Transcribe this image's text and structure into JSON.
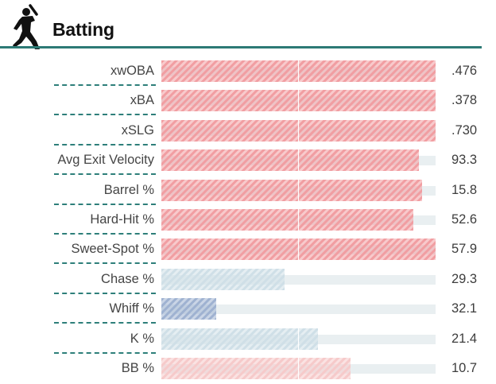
{
  "header": {
    "title": "Batting",
    "icon": "batter-icon"
  },
  "colors": {
    "accent": "#2c7a75",
    "bar_strong_red": "#f19ea2",
    "bar_light_red": "#f6caca",
    "bar_light_blue": "#cfdfe7",
    "bar_blue": "#9fb2d1"
  },
  "stats": [
    {
      "label": "xwOBA",
      "value": ".476",
      "percentile": 100,
      "tone": "strong_red"
    },
    {
      "label": "xBA",
      "value": ".378",
      "percentile": 100,
      "tone": "strong_red"
    },
    {
      "label": "xSLG",
      "value": ".730",
      "percentile": 100,
      "tone": "strong_red"
    },
    {
      "label": "Avg Exit Velocity",
      "value": "93.3",
      "percentile": 94,
      "tone": "strong_red"
    },
    {
      "label": "Barrel %",
      "value": "15.8",
      "percentile": 95,
      "tone": "strong_red"
    },
    {
      "label": "Hard-Hit %",
      "value": "52.6",
      "percentile": 92,
      "tone": "strong_red"
    },
    {
      "label": "Sweet-Spot %",
      "value": "57.9",
      "percentile": 100,
      "tone": "strong_red"
    },
    {
      "label": "Chase %",
      "value": "29.3",
      "percentile": 45,
      "tone": "light_blue"
    },
    {
      "label": "Whiff %",
      "value": "32.1",
      "percentile": 20,
      "tone": "blue"
    },
    {
      "label": "K %",
      "value": "21.4",
      "percentile": 57,
      "tone": "light_blue"
    },
    {
      "label": "BB %",
      "value": "10.7",
      "percentile": 69,
      "tone": "light_red"
    }
  ]
}
